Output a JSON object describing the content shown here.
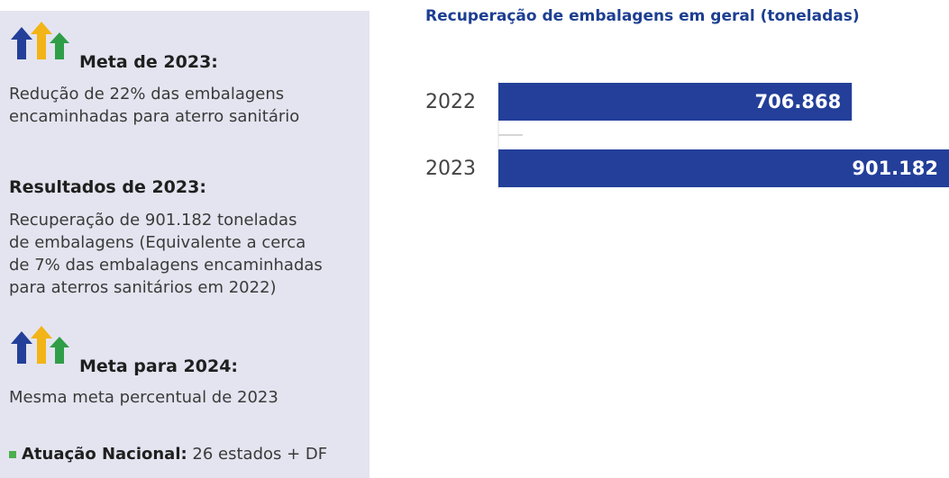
{
  "panel": {
    "goal_title": "Meta de 2023:",
    "goal_lines": [
      "Redução de 22% das embalagens",
      "encaminhadas para aterro sanitário"
    ],
    "results_title": "Resultados de 2023:",
    "results_lines": [
      "Recuperação de 901.182 toneladas",
      "de embalagens (Equivalente a cerca",
      "de 7% das embalagens encaminhadas",
      "para aterros sanitários em 2022)"
    ],
    "next_title": "Meta para 2024:",
    "next_text": "Mesma meta percentual de 2023",
    "scope_label": "Atuação Nacional:",
    "scope_text": " 26 estados + DF"
  },
  "chart_data": {
    "type": "barh",
    "title": "Recuperação de embalagens em geral (toneladas)",
    "categories": [
      "2022",
      "2023"
    ],
    "values": [
      706868,
      901182
    ],
    "value_labels": [
      "706.868",
      "901.182"
    ],
    "color": "#233f99"
  }
}
